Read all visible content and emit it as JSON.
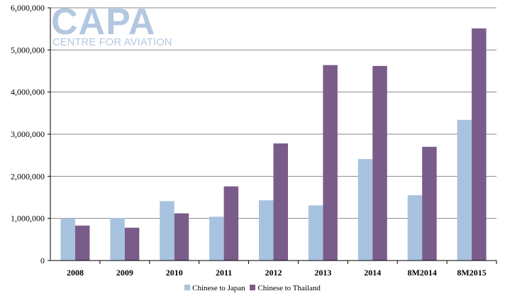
{
  "logo": {
    "word": "CAPA",
    "subtitle": "CENTRE FOR AVIATION"
  },
  "colors": {
    "japan": "#a8c3e0",
    "thailand": "#7a5c8a",
    "grid": "#888888",
    "axis": "#000000"
  },
  "chart_data": {
    "type": "bar",
    "categories": [
      "2008",
      "2009",
      "2010",
      "2011",
      "2012",
      "2013",
      "2014",
      "8M2014",
      "8M2015"
    ],
    "series": [
      {
        "name": "Chinese to Japan",
        "values": [
          1000000,
          1010000,
          1410000,
          1040000,
          1430000,
          1310000,
          2410000,
          1550000,
          3340000
        ]
      },
      {
        "name": "Chinese to Thailand",
        "values": [
          830000,
          780000,
          1120000,
          1760000,
          2780000,
          4640000,
          4620000,
          2700000,
          5510000
        ]
      }
    ],
    "ylim": [
      0,
      6000000
    ],
    "yticks": [
      "0",
      "1,000,000",
      "2,000,000",
      "3,000,000",
      "4,000,000",
      "5,000,000",
      "6,000,000"
    ],
    "grid": true,
    "legend": "bottom"
  }
}
